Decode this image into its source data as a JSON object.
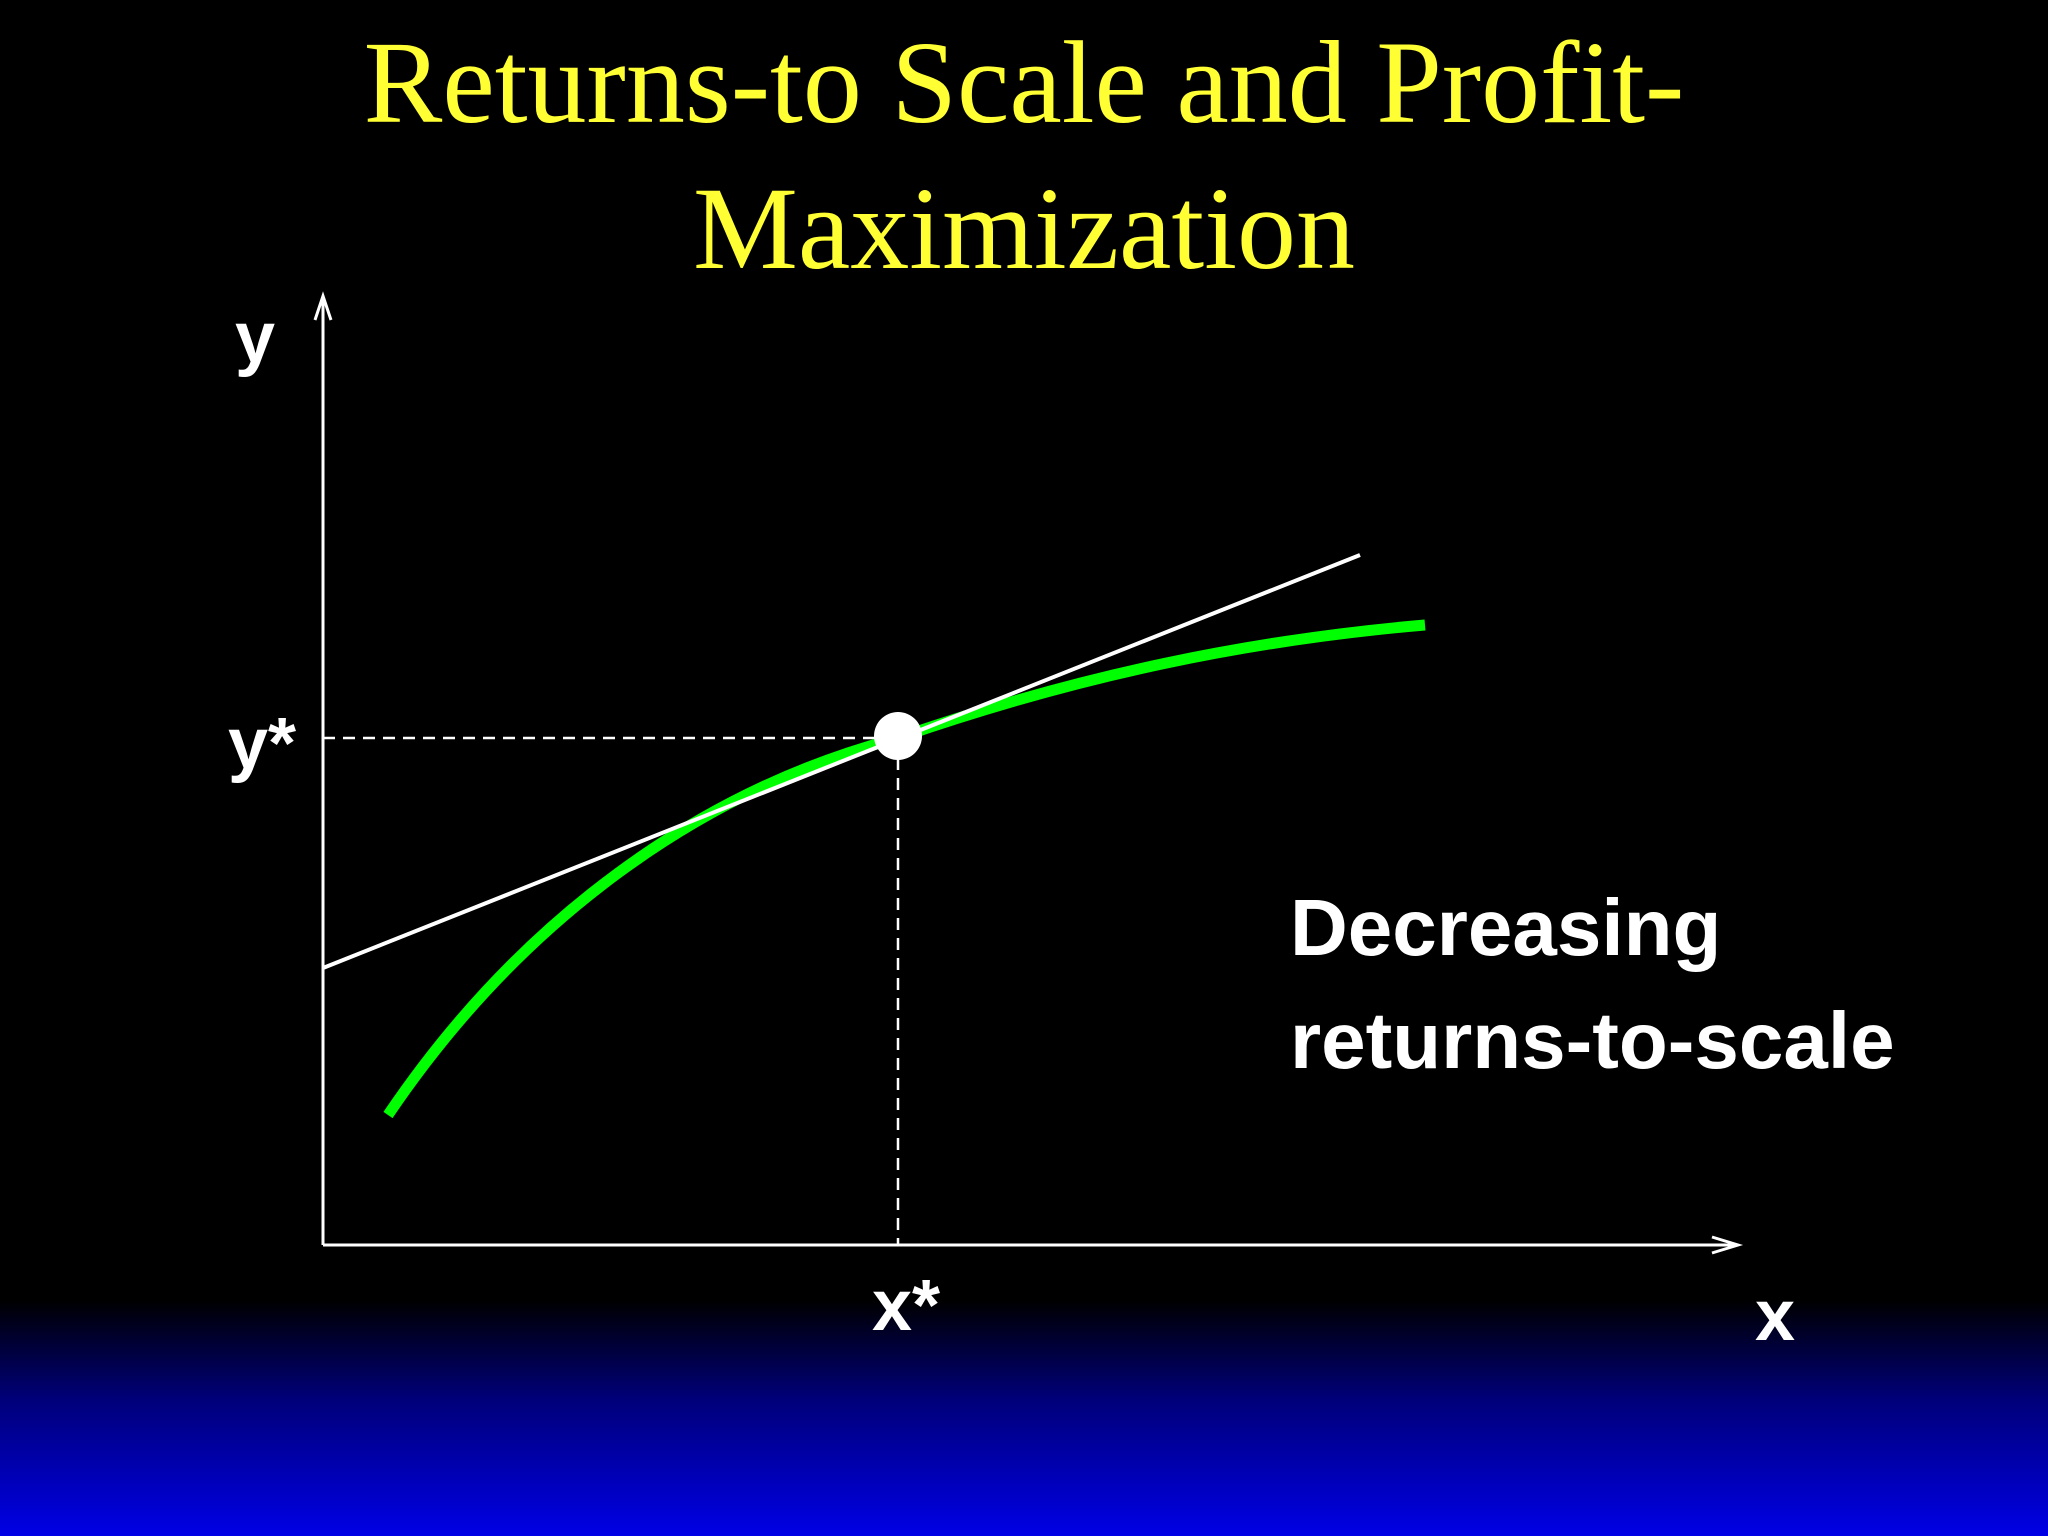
{
  "slide": {
    "title_line1": "Returns-to Scale and Profit-",
    "title_line2": "Maximization"
  },
  "diagram": {
    "y_axis_label": "y",
    "x_axis_label": "x",
    "y_star_label": "y*",
    "x_star_label": "x*",
    "annotation_line1": "Decreasing",
    "annotation_line2": "returns-to-scale"
  },
  "colors": {
    "title": "#ffff33",
    "curve": "#00ff00",
    "lines": "#ffffff",
    "background_top": "#000000",
    "background_bottom": "#0000e6"
  }
}
